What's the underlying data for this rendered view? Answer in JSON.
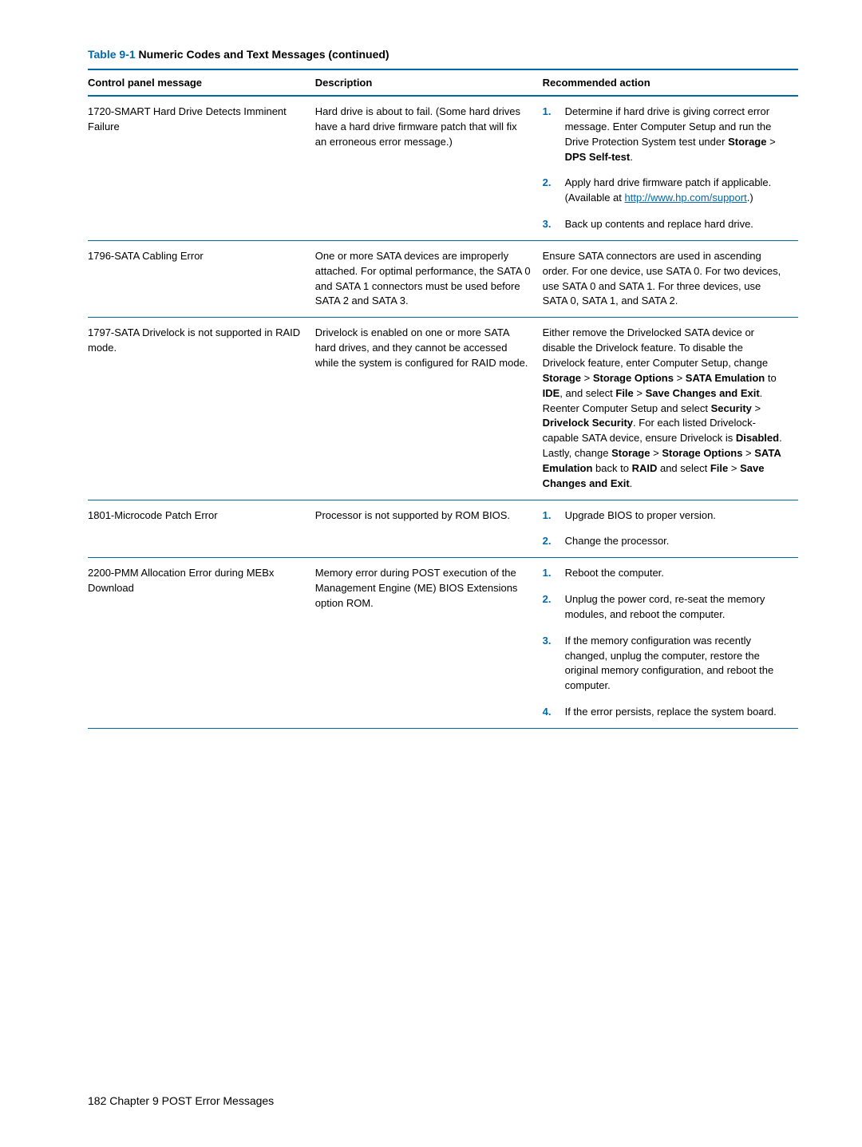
{
  "table_title_blue": "Table 9-1",
  "table_title_rest": "  Numeric Codes and Text Messages (continued)",
  "headers": {
    "c1": "Control panel message",
    "c2": "Description",
    "c3": "Recommended action"
  },
  "rows": {
    "r1": {
      "msg": "1720-SMART Hard Drive Detects Imminent Failure",
      "desc": "Hard drive is about to fail. (Some hard drives have a hard drive firmware patch that will fix an erroneous error message.)",
      "s1a": "Determine if hard drive is giving correct error message. Enter Computer Setup and run the Drive Protection System test under ",
      "s1b": "Storage",
      "s1c": " > ",
      "s1d": "DPS Self-test",
      "s1e": ".",
      "s2a": "Apply hard drive firmware patch if applicable. (Available at ",
      "s2_link": "http://www.hp.com/support",
      "s2b": ".)",
      "s3": "Back up contents and replace hard drive."
    },
    "r2": {
      "msg": "1796-SATA Cabling Error",
      "desc": "One or more SATA devices are improperly attached. For optimal performance, the SATA 0 and SATA 1 connectors must be used before SATA 2 and SATA 3.",
      "action": "Ensure SATA connectors are used in ascending order. For one device, use SATA 0. For two devices, use SATA 0 and SATA 1. For three devices, use SATA 0, SATA 1, and SATA 2."
    },
    "r3": {
      "msg": "1797-SATA Drivelock is not supported in RAID mode.",
      "desc": "Drivelock is enabled on one or more SATA hard drives, and they cannot be accessed while the system is configured for RAID mode.",
      "a1": "Either remove the Drivelocked SATA device or disable the Drivelock feature. To disable the Drivelock feature, enter Computer Setup, change ",
      "a2": "Storage",
      "a3": " > ",
      "a4": "Storage Options",
      "a5": " > ",
      "a6": "SATA Emulation",
      "a7": " to ",
      "a8": "IDE",
      "a9": ", and select ",
      "a10": "File",
      "a11": " > ",
      "a12": "Save Changes and Exit",
      "a13": ". Reenter Computer Setup and select ",
      "a14": "Security",
      "a15": " > ",
      "a16": "Drivelock Security",
      "a17": ". For each listed Drivelock-capable SATA device, ensure Drivelock is ",
      "a18": "Disabled",
      "a19": ". Lastly, change ",
      "a20": "Storage",
      "a21": " > ",
      "a22": "Storage Options",
      "a23": " > ",
      "a24": "SATA Emulation",
      "a25": " back to ",
      "a26": "RAID",
      "a27": " and select ",
      "a28": "File",
      "a29": " > ",
      "a30": "Save Changes and Exit",
      "a31": "."
    },
    "r4": {
      "msg": "1801-Microcode Patch Error",
      "desc": "Processor is not supported by ROM BIOS.",
      "s1": "Upgrade BIOS to proper version.",
      "s2": "Change the processor."
    },
    "r5": {
      "msg": "2200-PMM Allocation Error during MEBx Download",
      "desc": "Memory error during POST execution of the Management Engine (ME) BIOS Extensions option ROM.",
      "s1": "Reboot the computer.",
      "s2": "Unplug the power cord, re-seat the memory modules, and reboot the computer.",
      "s3": "If the memory configuration was recently changed, unplug the computer, restore the original memory configuration, and reboot the computer.",
      "s4": "If the error persists, replace the system board."
    }
  },
  "footer": "182   Chapter 9   POST Error Messages"
}
